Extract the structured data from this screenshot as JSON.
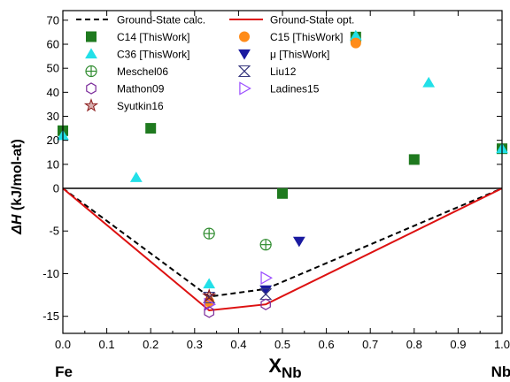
{
  "chart_data": {
    "type": "scatter",
    "xlabel_main": "X",
    "xlabel_sub": "Nb",
    "ylabel_main": "ΔH",
    "ylabel_unit": " (kJ/mol-at)",
    "end_label_left": "Fe",
    "end_label_right": "Nb",
    "xlim": [
      0.0,
      1.0
    ],
    "ylim": [
      -17,
      74
    ],
    "x_ticks": [
      0.0,
      0.1,
      0.2,
      0.3,
      0.4,
      0.5,
      0.6,
      0.7,
      0.8,
      0.9,
      1.0
    ],
    "x_tick_labels": [
      "0.0",
      "0.1",
      "0.2",
      "0.3",
      "0.4",
      "0.5",
      "0.6",
      "0.7",
      "0.8",
      "0.9",
      "1.0"
    ],
    "y_ticks": [
      -15,
      -10,
      -5,
      0,
      10,
      20,
      30,
      40,
      50,
      60,
      70
    ],
    "y_tick_labels": [
      "-15",
      "-10",
      "-5",
      "0",
      "10",
      "20",
      "30",
      "40",
      "50",
      "60",
      "70"
    ],
    "y_axis_note": "y axis is piecewise: the segment from -17 to 0 is stretched relative to 0 to 74",
    "lines": [
      {
        "name": "Ground-State calc.",
        "color": "#000000",
        "dash": "6,4",
        "points": [
          [
            0.0,
            0
          ],
          [
            0.333,
            -12.7
          ],
          [
            0.462,
            -11.8
          ],
          [
            1.0,
            0
          ]
        ]
      },
      {
        "name": "Ground-State opt.",
        "color": "#dd1111",
        "dash": "",
        "points": [
          [
            0.0,
            0
          ],
          [
            0.333,
            -14.3
          ],
          [
            0.462,
            -13.6
          ],
          [
            1.0,
            0
          ]
        ]
      }
    ],
    "series": [
      {
        "name": "C14 [ThisWork]",
        "marker": "square",
        "color": "#1f7a1f",
        "points": [
          [
            0.0,
            24
          ],
          [
            0.2,
            25
          ],
          [
            0.5,
            -0.6
          ],
          [
            0.667,
            63
          ],
          [
            0.8,
            12
          ],
          [
            1.0,
            16.5
          ]
        ]
      },
      {
        "name": "C15 [ThisWork]",
        "marker": "circle",
        "color": "#ff8c1a",
        "points": [
          [
            0.333,
            -13.3
          ],
          [
            0.667,
            60.5
          ]
        ]
      },
      {
        "name": "C36 [ThisWork]",
        "marker": "triangle-up",
        "color": "#22e0e8",
        "points": [
          [
            0.0,
            22
          ],
          [
            0.167,
            4.5
          ],
          [
            0.333,
            -11.2
          ],
          [
            0.667,
            63.5
          ],
          [
            0.833,
            44
          ],
          [
            1.0,
            16.5
          ]
        ]
      },
      {
        "name": "μ [ThisWork]",
        "marker": "triangle-down",
        "color": "#1a1aa0",
        "points": [
          [
            0.462,
            -11.9
          ],
          [
            0.538,
            -6.2
          ]
        ]
      },
      {
        "name": "Meschel06",
        "marker": "circle-plus",
        "color": "#2e8b2e",
        "points": [
          [
            0.333,
            -5.3
          ],
          [
            0.462,
            -6.6
          ]
        ]
      },
      {
        "name": "Liu12",
        "marker": "x-cross",
        "color": "#3a3a80",
        "points": [
          [
            0.333,
            -12.8
          ],
          [
            0.462,
            -12.4
          ]
        ]
      },
      {
        "name": "Mathon09",
        "marker": "hexagon",
        "color": "#7a2a9a",
        "points": [
          [
            0.333,
            -14.5
          ],
          [
            0.462,
            -13.6
          ]
        ]
      },
      {
        "name": "Ladines15",
        "marker": "triangle-right",
        "color": "#9b4dff",
        "points": [
          [
            0.333,
            -13.6
          ],
          [
            0.462,
            -10.5
          ]
        ]
      },
      {
        "name": "Syutkin16",
        "marker": "star",
        "color": "#8b1a1a",
        "points": [
          [
            0.333,
            -12.6
          ]
        ]
      }
    ],
    "legend": {
      "rows": [
        [
          "Ground-State calc.",
          "Ground-State opt."
        ],
        [
          "C14 [ThisWork]",
          "C15 [ThisWork]"
        ],
        [
          "C36 [ThisWork]",
          "μ [ThisWork]"
        ],
        [
          "Meschel06",
          "Liu12"
        ],
        [
          "Mathon09",
          "Ladines15"
        ],
        [
          "Syutkin16"
        ]
      ]
    }
  }
}
